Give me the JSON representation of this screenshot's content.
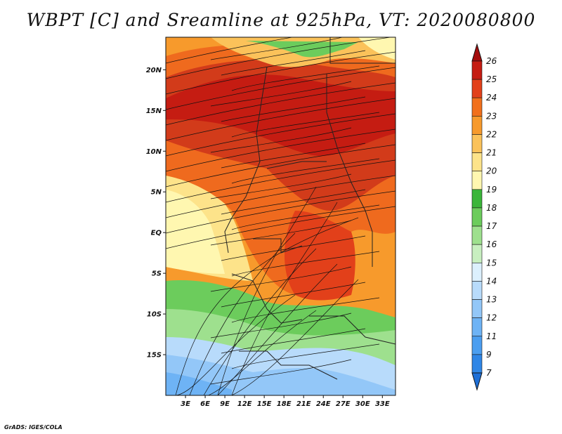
{
  "title": "WBPT [C] and Sreamline at 925hPa, VT: 2020080800",
  "footer": "GrADS: IGES/COLA",
  "lat_labels": [
    "20N",
    "15N",
    "10N",
    "5N",
    "EQ",
    "5S",
    "10S",
    "15S"
  ],
  "lat_values": [
    20,
    15,
    10,
    5,
    0,
    -5,
    -10,
    -15
  ],
  "lon_labels": [
    "3E",
    "6E",
    "9E",
    "12E",
    "15E",
    "18E",
    "21E",
    "24E",
    "27E",
    "30E",
    "33E"
  ],
  "lon_values": [
    3,
    6,
    9,
    12,
    15,
    18,
    21,
    24,
    27,
    30,
    33
  ],
  "colorbar": {
    "labels": [
      "7",
      "9",
      "11",
      "12",
      "13",
      "14",
      "15",
      "16",
      "17",
      "18",
      "19",
      "20",
      "21",
      "22",
      "23",
      "24",
      "25",
      "26"
    ],
    "colors": [
      "#1e6fd6",
      "#2f86e6",
      "#4b9ef0",
      "#6eb3f5",
      "#93c7f8",
      "#b8dbfb",
      "#dcf0fd",
      "#c8efc0",
      "#9ee08e",
      "#6ccc5c",
      "#3bb53a",
      "#fff7b0",
      "#fde38a",
      "#fbc25a",
      "#f79a2c",
      "#f1701c",
      "#e2401a",
      "#c51c12",
      "#a50d0d"
    ]
  },
  "map": {
    "lon_range": [
      0,
      35
    ],
    "lat_range": [
      -20,
      24
    ],
    "colors": {
      "hot": "#d23b1a",
      "warm": "#ef6a1e",
      "mid": "#f79a2c",
      "mild": "#fbc25a",
      "pale": "#fde38a",
      "green": "#6ccc5c",
      "lightgreen": "#9ee08e",
      "blue": "#6eb3f5",
      "lightblue": "#93c7f8",
      "sky": "#b8dbfb"
    }
  }
}
